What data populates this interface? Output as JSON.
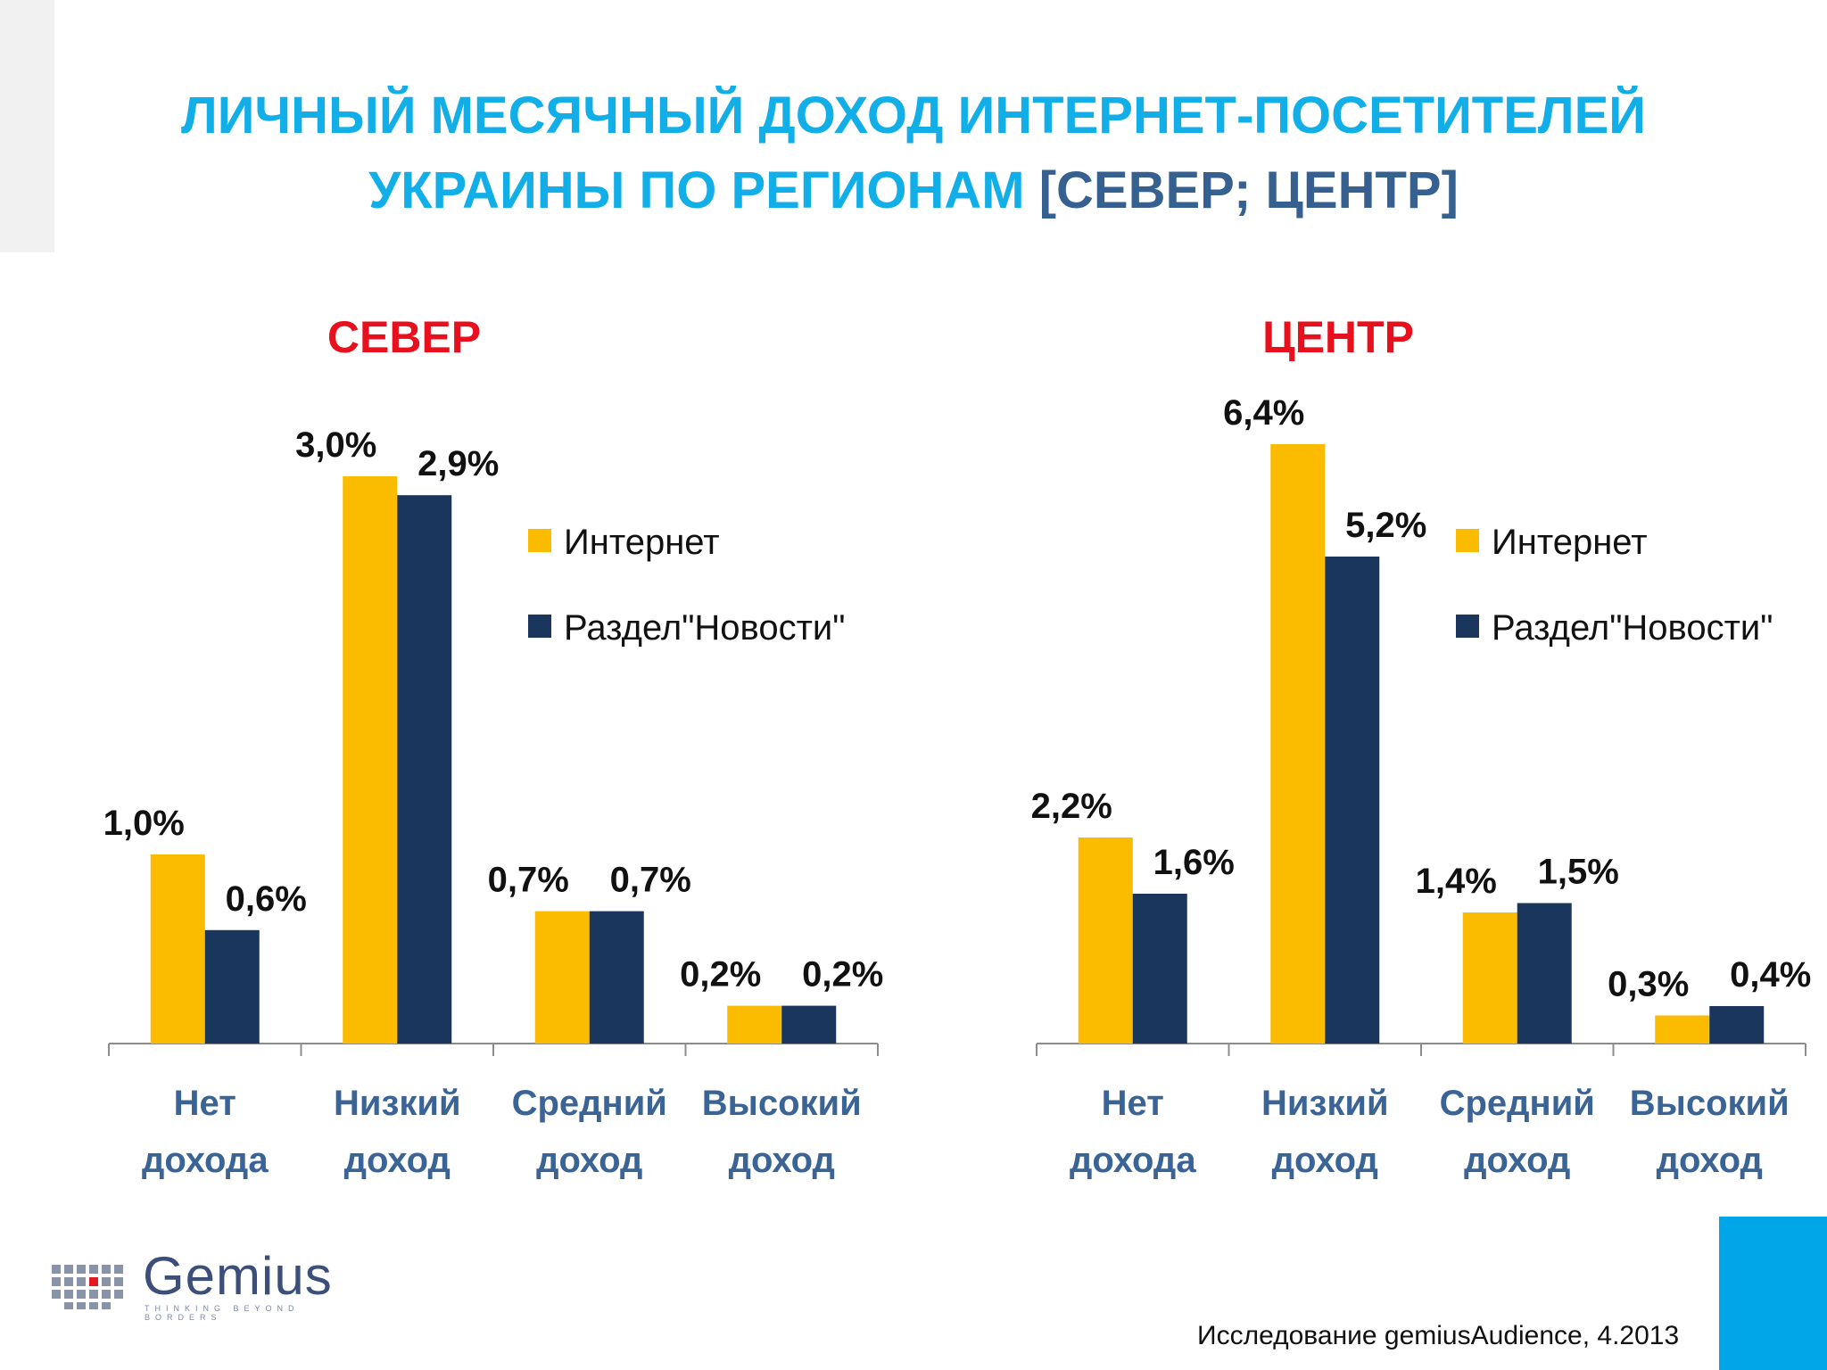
{
  "title": {
    "line1": "ЛИЧНЫЙ МЕСЯЧНЫЙ ДОХОД ИНТЕРНЕТ-ПОСЕТИТЕЛЕЙ",
    "line2_main": "УКРАИНЫ ПО РЕГИОНАМ ",
    "line2_accent": "[СЕВЕР; ЦЕНТР]"
  },
  "colors": {
    "internet": "#fbbc00",
    "news": "#1a365c",
    "title": "#12aee8",
    "title_accent": "#35608f",
    "region_title": "#e8101c",
    "category": "#3b6496"
  },
  "chart_data": [
    {
      "type": "bar",
      "title": "СЕВЕР",
      "categories": [
        [
          "Нет",
          "дохода"
        ],
        [
          "Низкий",
          "доход"
        ],
        [
          "Средний",
          "доход"
        ],
        [
          "Высокий",
          "доход"
        ]
      ],
      "series": [
        {
          "name": "Интернет",
          "values": [
            1.0,
            3.0,
            0.7,
            0.2
          ],
          "labels": [
            "1,0%",
            "3,0%",
            "0,7%",
            "0,2%"
          ]
        },
        {
          "name": "Раздел\"Новости\"",
          "values": [
            0.6,
            2.9,
            0.7,
            0.2
          ],
          "labels": [
            "0,6%",
            "2,9%",
            "0,7%",
            "0,2%"
          ]
        }
      ],
      "legend": "right"
    },
    {
      "type": "bar",
      "title": "ЦЕНТР",
      "categories": [
        [
          "Нет",
          "дохода"
        ],
        [
          "Низкий",
          "доход"
        ],
        [
          "Средний",
          "доход"
        ],
        [
          "Высокий",
          "доход"
        ]
      ],
      "series": [
        {
          "name": "Интернет",
          "values": [
            2.2,
            6.4,
            1.4,
            0.3
          ],
          "labels": [
            "2,2%",
            "6,4%",
            "1,4%",
            "0,3%"
          ]
        },
        {
          "name": "Раздел\"Новости\"",
          "values": [
            1.6,
            5.2,
            1.5,
            0.4
          ],
          "labels": [
            "1,6%",
            "5,2%",
            "1,5%",
            "0,4%"
          ]
        }
      ],
      "legend": "right"
    }
  ],
  "logo": {
    "name": "Gemius",
    "tagline": "THINKING BEYOND BORDERS"
  },
  "footer": "Исследование gemiusAudience, 4.2013"
}
